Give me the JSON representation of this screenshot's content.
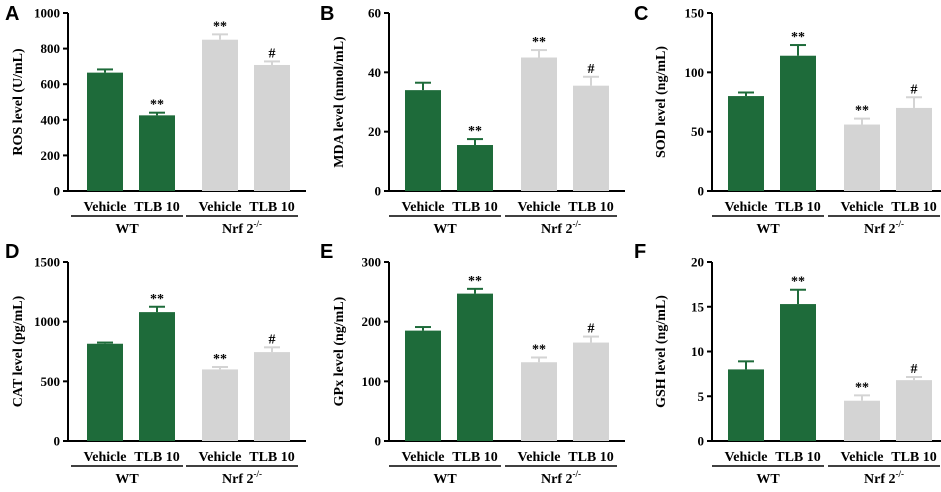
{
  "colors": {
    "wt": "#1e6b3a",
    "nrf2": "#d4d4d4",
    "axis": "#000000"
  },
  "chart_data": [
    {
      "panel": "A",
      "type": "bar",
      "ylabel": "ROS level (U/mL)",
      "ylim": [
        0,
        1000
      ],
      "yticks": [
        "0",
        "200",
        "400",
        "600",
        "800",
        "1000"
      ],
      "ytick_values": [
        0,
        200,
        400,
        600,
        800,
        1000
      ],
      "categories": [
        "Vehicle",
        "TLB 10",
        "Vehicle",
        "TLB 10"
      ],
      "groups": [
        {
          "label": "WT",
          "base": ""
        },
        {
          "label": "Nrf 2",
          "base": "Nrf 2",
          "sup": "-/-"
        }
      ],
      "values": [
        665,
        425,
        850,
        708
      ],
      "errors": [
        18,
        15,
        30,
        20
      ],
      "annotations": [
        "",
        "**",
        "**",
        "#"
      ]
    },
    {
      "panel": "B",
      "type": "bar",
      "ylabel": "MDA level (nmol/mL)",
      "ylim": [
        0,
        60
      ],
      "yticks": [
        "0",
        "20",
        "40",
        "60"
      ],
      "ytick_values": [
        0,
        20,
        40,
        60
      ],
      "categories": [
        "Vehicle",
        "TLB 10",
        "Vehicle",
        "TLB 10"
      ],
      "groups": [
        {
          "label": "WT",
          "base": ""
        },
        {
          "label": "Nrf 2",
          "base": "Nrf 2",
          "sup": "-/-"
        }
      ],
      "values": [
        34,
        15.5,
        45,
        35.5
      ],
      "errors": [
        2.5,
        2,
        2.5,
        3
      ],
      "annotations": [
        "",
        "**",
        "**",
        "#"
      ]
    },
    {
      "panel": "C",
      "type": "bar",
      "ylabel": "SOD level (ng/mL)",
      "ylim": [
        0,
        150
      ],
      "yticks": [
        "0",
        "50",
        "100",
        "150"
      ],
      "ytick_values": [
        0,
        50,
        100,
        150
      ],
      "categories": [
        "Vehicle",
        "TLB 10",
        "Vehicle",
        "TLB 10"
      ],
      "groups": [
        {
          "label": "WT",
          "base": ""
        },
        {
          "label": "Nrf 2",
          "base": "Nrf 2",
          "sup": "-/-"
        }
      ],
      "values": [
        80,
        114,
        56,
        70
      ],
      "errors": [
        3,
        9,
        5,
        9
      ],
      "annotations": [
        "",
        "**",
        "**",
        "#"
      ]
    },
    {
      "panel": "D",
      "type": "bar",
      "ylabel": "CAT level (pg/mL)",
      "ylim": [
        0,
        1500
      ],
      "yticks": [
        "0",
        "500",
        "1000",
        "1500"
      ],
      "ytick_values": [
        0,
        500,
        1000,
        1500
      ],
      "categories": [
        "Vehicle",
        "TLB 10",
        "Vehicle",
        "TLB 10"
      ],
      "groups": [
        {
          "label": "WT",
          "base": ""
        },
        {
          "label": "Nrf 2",
          "base": "Nrf 2",
          "sup": "-/-"
        }
      ],
      "values": [
        815,
        1080,
        600,
        745
      ],
      "errors": [
        10,
        45,
        20,
        40
      ],
      "annotations": [
        "",
        "**",
        "**",
        "#"
      ]
    },
    {
      "panel": "E",
      "type": "bar",
      "ylabel": "GPx level (ng/mL)",
      "ylim": [
        0,
        300
      ],
      "yticks": [
        "0",
        "100",
        "200",
        "300"
      ],
      "ytick_values": [
        0,
        100,
        200,
        300
      ],
      "categories": [
        "Vehicle",
        "TLB 10",
        "Vehicle",
        "TLB 10"
      ],
      "groups": [
        {
          "label": "WT",
          "base": ""
        },
        {
          "label": "Nrf 2",
          "base": "Nrf 2",
          "sup": "-/-"
        }
      ],
      "values": [
        185,
        247,
        132,
        165
      ],
      "errors": [
        6,
        8,
        8,
        10
      ],
      "annotations": [
        "",
        "**",
        "**",
        "#"
      ]
    },
    {
      "panel": "F",
      "type": "bar",
      "ylabel": "GSH level (ng/mL)",
      "ylim": [
        0,
        20
      ],
      "yticks": [
        "0",
        "5",
        "10",
        "15",
        "20"
      ],
      "ytick_values": [
        0,
        5,
        10,
        15,
        20
      ],
      "categories": [
        "Vehicle",
        "TLB 10",
        "Vehicle",
        "TLB 10"
      ],
      "groups": [
        {
          "label": "WT",
          "base": ""
        },
        {
          "label": "Nrf 2",
          "base": "Nrf 2",
          "sup": "-/-"
        }
      ],
      "values": [
        8,
        15.3,
        4.5,
        6.8
      ],
      "errors": [
        0.9,
        1.6,
        0.6,
        0.35
      ],
      "annotations": [
        "",
        "**",
        "**",
        "#"
      ]
    }
  ]
}
